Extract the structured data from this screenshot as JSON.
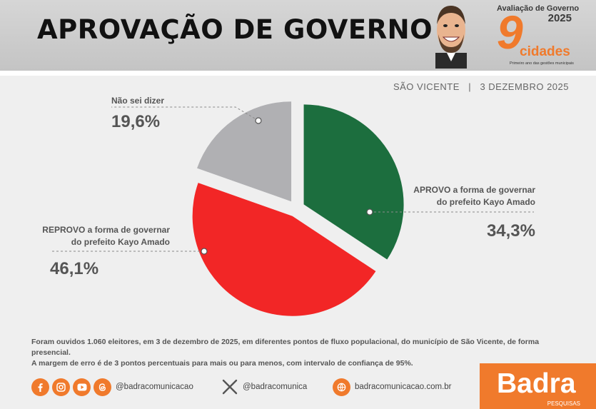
{
  "header": {
    "title": "APROVAÇÃO DE GOVERNO",
    "brand_kicker": "Avaliação de Governo",
    "brand_year": "2025",
    "brand_number": "9",
    "brand_word": "cidades",
    "brand_tagline": "Primeiro ano das gestões municipais"
  },
  "subtitle": {
    "city": "SÃO VICENTE",
    "separator": "|",
    "date": "3 DEZEMBRO 2025"
  },
  "chart_data": {
    "type": "pie",
    "title": "APROVAÇÃO DE GOVERNO",
    "slices": [
      {
        "label": "APROVO a forma de governar do prefeito Kayo Amado",
        "label_line1": "APROVO a forma de governar",
        "label_line2": "do prefeito Kayo Amado",
        "value": 34.3,
        "display": "34,3%",
        "color": "#1c6e3e"
      },
      {
        "label": "REPROVO a forma de governar do prefeito Kayo Amado",
        "label_line1": "REPROVO a forma de governar",
        "label_line2": "do prefeito Kayo Amado",
        "value": 46.1,
        "display": "46,1%",
        "color": "#f22626"
      },
      {
        "label": "Não sei dizer",
        "label_line1": "Não sei dizer",
        "label_line2": "",
        "value": 19.6,
        "display": "19,6%",
        "color": "#b0b0b3"
      }
    ],
    "legend": "callouts"
  },
  "note": {
    "line1": "Foram ouvidos 1.060 eleitores, em 3 de dezembro de 2025, em diferentes pontos de fluxo populacional, do município de São Vicente, de forma presencial.",
    "line2": "A margem de erro é de 3 pontos percentuais para mais ou para menos, com intervalo de confiança de 95%."
  },
  "footer": {
    "handle_1": "@badracomunicacao",
    "handle_2": "@badracomunica",
    "website": "badracomunicacao.com.br",
    "brand_name": "Badra",
    "brand_sub": "PESQUISAS",
    "icons": [
      "facebook-icon",
      "instagram-icon",
      "youtube-icon",
      "threads-icon",
      "x-icon",
      "website-icon"
    ],
    "accent_color": "#f07a2c"
  }
}
